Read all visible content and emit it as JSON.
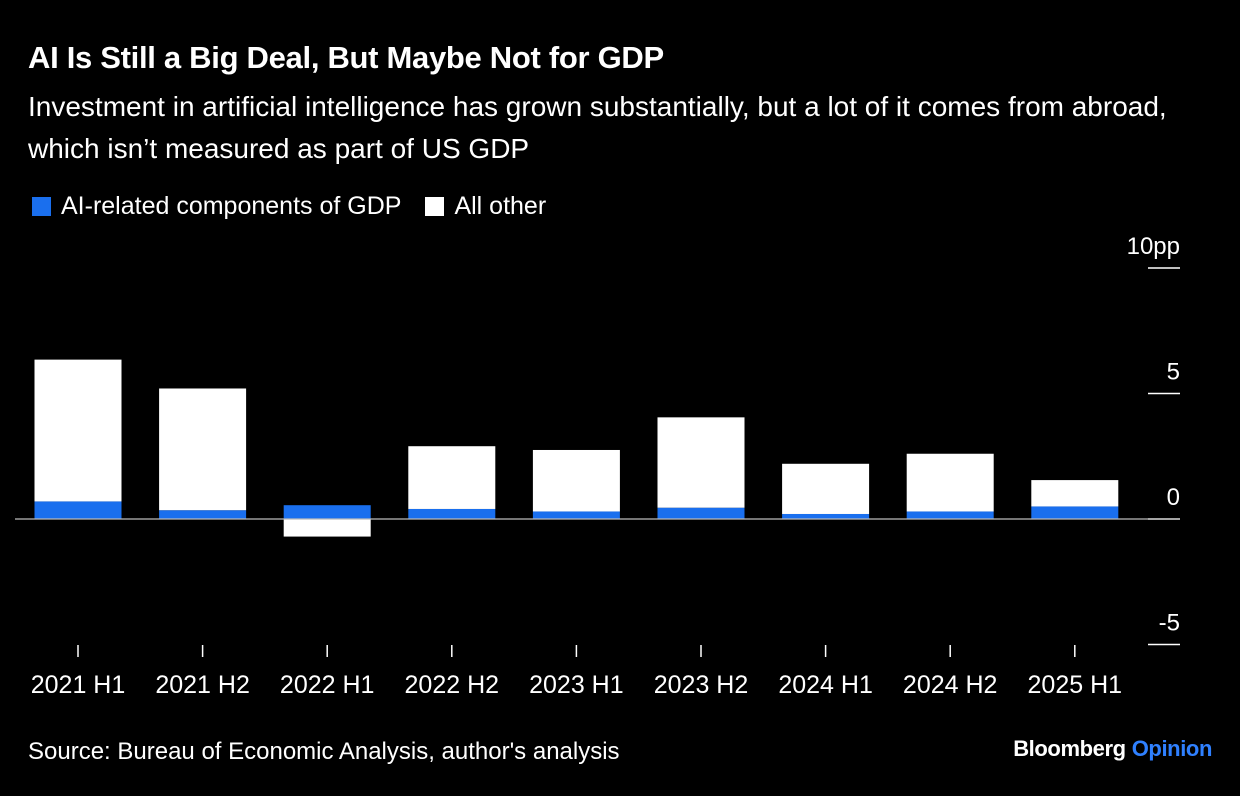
{
  "header": {
    "title": "AI Is Still a Big Deal, But Maybe Not for GDP",
    "subtitle": "Investment in artificial intelligence has grown substantially, but a lot of it comes from abroad, which isn’t measured as part of US GDP"
  },
  "footer": {
    "source": "Source: Bureau of Economic Analysis, author's analysis",
    "brand_primary": "Bloomberg",
    "brand_secondary": "Opinion"
  },
  "colors": {
    "background": "#000000",
    "ai_series": "#1a6fee",
    "other_series": "#ffffff",
    "brand_accent": "#2f80ff"
  },
  "chart_data": {
    "type": "bar",
    "stacked": true,
    "categories": [
      "2021 H1",
      "2021 H2",
      "2022 H1",
      "2022 H2",
      "2023 H1",
      "2023 H2",
      "2024 H1",
      "2024 H2",
      "2025 H1"
    ],
    "series": [
      {
        "name": "AI-related components of GDP",
        "color": "#1a6fee",
        "values": [
          0.7,
          0.35,
          0.55,
          0.4,
          0.3,
          0.45,
          0.2,
          0.3,
          0.5
        ]
      },
      {
        "name": "All other",
        "color": "#ffffff",
        "values": [
          5.65,
          4.85,
          -0.7,
          2.5,
          2.45,
          3.6,
          2.0,
          2.3,
          1.05
        ]
      }
    ],
    "ylim": [
      -5,
      10
    ],
    "yticks": [
      -5,
      0,
      5,
      10
    ],
    "ytick_labels": [
      "-5",
      "0",
      "5",
      "10pp"
    ],
    "axis_side": "right",
    "legend_position": "top-left",
    "grid": false
  }
}
